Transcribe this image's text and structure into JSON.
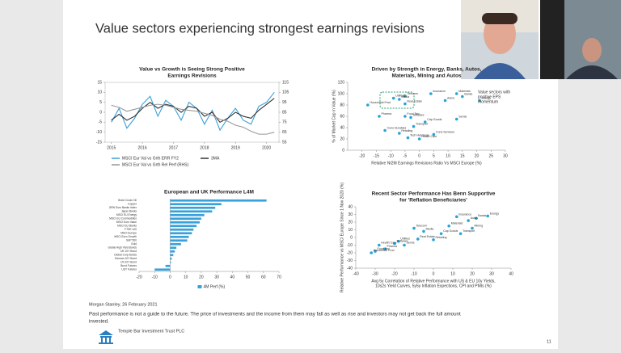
{
  "slide": {
    "title": "Value sectors experiencing strongest earnings revisions",
    "source": "Morgan Stanley, 26 February 2021",
    "disclaimer": [
      "Past performance is not a guide to the future. The price of investments and the income from them may fall as well as rise and investors may not get back the full amount",
      "invested."
    ],
    "company": "Temple Bar Investment Trust PLC",
    "page_number": "11"
  },
  "chart_data": [
    {
      "type": "line",
      "title": [
        "Value vs Growth is Seeing Strong Positive",
        "Earnings Revisions"
      ],
      "x": [
        2015,
        2015.25,
        2015.5,
        2015.75,
        2016,
        2016.25,
        2016.5,
        2016.75,
        2017,
        2017.25,
        2017.5,
        2017.75,
        2018,
        2018.25,
        2018.5,
        2018.75,
        2019,
        2019.25,
        2019.5,
        2019.75,
        2020,
        2020.25
      ],
      "xlim": [
        2014.8,
        2020.4
      ],
      "xticks": [
        2015,
        2016,
        2017,
        2018,
        2019,
        2020
      ],
      "ylim": [
        -15,
        15
      ],
      "yticks": [
        -15,
        -10,
        -5,
        0,
        5,
        10,
        15
      ],
      "y2lim": [
        55,
        115
      ],
      "y2ticks": [
        55,
        65,
        75,
        85,
        95,
        105,
        115
      ],
      "series": [
        {
          "name": "MSCI Eur Val vs Grth ERR FY2",
          "color": "#3aa0d8",
          "values": [
            -5,
            2,
            -8,
            -3,
            4,
            8,
            -2,
            6,
            3,
            -4,
            5,
            2,
            -6,
            1,
            -9,
            -3,
            2,
            -4,
            -6,
            3,
            5,
            10
          ]
        },
        {
          "name": "3MA",
          "color": "#333333",
          "values": [
            -4,
            -1,
            -4,
            -2,
            2,
            5,
            2,
            4,
            3,
            0,
            3,
            2,
            -2,
            0,
            -5,
            -3,
            0,
            -2,
            -3,
            1,
            4,
            7
          ]
        },
        {
          "name": "MSCI Eur Val vs Grth Rel Perf (RHS)",
          "color": "#999999",
          "axis": "y2",
          "values": [
            92,
            90,
            86,
            88,
            90,
            92,
            93,
            92,
            90,
            88,
            87,
            86,
            84,
            82,
            78,
            76,
            72,
            70,
            66,
            63,
            63,
            65
          ]
        }
      ]
    },
    {
      "type": "scatter",
      "title": [
        "Driven by Strength in Energy, Banks, Autos,",
        "Materials, Mining and Autos"
      ],
      "xlabel": [
        "Relative NI2M Earnings Revisions Ratio Vs MSCI Europe (%)"
      ],
      "ylabel": "% of Market Cap in Value (%)",
      "annotation": [
        "Value sectors with",
        "positive EPS",
        "momentum"
      ],
      "xlim": [
        -25,
        30
      ],
      "xticks": [
        -20,
        -15,
        -10,
        -5,
        0,
        5,
        10,
        15,
        20,
        25,
        30
      ],
      "ylim": [
        0,
        120
      ],
      "yticks": [
        0,
        20,
        40,
        60,
        80,
        100,
        120
      ],
      "color": "#29a3d6",
      "point_labels": [
        "Energy",
        "Banks",
        "Autos",
        "Materials",
        "Insurance",
        "Telecom",
        "Utilities",
        "Media",
        "Real Estate",
        "Household Prod",
        "Pharma",
        "Food Bev",
        "Software",
        "Cap Goods",
        "Transport",
        "Cons Durables",
        "Retailing",
        "Semis",
        "Cons Services",
        "Tech Hardware",
        "Health Care"
      ],
      "x": [
        21,
        15,
        9,
        13,
        4,
        -5,
        -9,
        -7,
        -5,
        -18,
        -14,
        -5,
        -3,
        2,
        -2,
        -12,
        -7,
        13,
        5,
        -4,
        0
      ],
      "values": [
        88,
        95,
        88,
        100,
        100,
        96,
        92,
        90,
        82,
        80,
        60,
        60,
        58,
        50,
        42,
        35,
        30,
        55,
        28,
        22,
        20
      ]
    },
    {
      "type": "bar",
      "orientation": "horizontal",
      "title": [
        "European and UK Performance L4M"
      ],
      "categories": [
        "Brent Crude Oil",
        "Copper",
        "GRN Euro Banks Index",
        "Japan Banks",
        "MSCI EU Energy",
        "MSCI EU Commodities",
        "MSCI Euro Value",
        "MSCI EU Banks",
        "FTSE 100",
        "MSCI Europe",
        "MSCI Euro Growth",
        "S&P 500",
        "Gold",
        "Global High Yield Bonds",
        "UK 10Y Bond",
        "Global Corp Bonds",
        "German 10Y Bond",
        "US 10Y Bond",
        "Bund Futures",
        "UST Futures"
      ],
      "xlim": [
        -20,
        70
      ],
      "xticks": [
        -20,
        -10,
        0,
        10,
        20,
        30,
        40,
        50,
        60,
        70
      ],
      "series": [
        {
          "name": "4M Perf (%)",
          "color": "#3aa0d8",
          "values": [
            62,
            33,
            29,
            27,
            22,
            20,
            19,
            17,
            15,
            14,
            12,
            11,
            7,
            4,
            3,
            2,
            1,
            0.5,
            -3,
            -10
          ]
        }
      ]
    },
    {
      "type": "scatter",
      "title": [
        "Recent Sector Performance Has Benn Supportive",
        "for 'Reflation Beneficiaries'"
      ],
      "xlabel": [
        "Avg 5y Correlation of Relative Performance with US & EU 10y Yields,",
        "10s2s Yield Curves, 5y5y Inflation Expections, CPI and PMIs (%)"
      ],
      "ylabel": "Relative Performance vs MSCI Europe Since 1 Nov 2020 (%)",
      "xlim": [
        -40,
        40
      ],
      "xticks": [
        -40,
        -30,
        -20,
        -10,
        0,
        10,
        20,
        30,
        40
      ],
      "ylim": [
        -40,
        40
      ],
      "yticks": [
        -40,
        -30,
        -20,
        -10,
        0,
        10,
        20,
        30,
        40
      ],
      "color": "#29a3d6",
      "point_labels": [
        "Energy",
        "Banks",
        "Insurance",
        "Autos",
        "Mining",
        "Materials",
        "Cap Goods",
        "Media",
        "Telecom",
        "Utilities",
        "Real Estate",
        "Pharma",
        "Food Bev",
        "Household Prod",
        "Software",
        "Semis",
        "Transport",
        "Retailing",
        "Health Care"
      ],
      "x": [
        28,
        22,
        12,
        18,
        20,
        8,
        4,
        -5,
        -10,
        -18,
        -8,
        -25,
        -30,
        -32,
        -20,
        -15,
        14,
        0,
        -28
      ],
      "values": [
        28,
        25,
        27,
        22,
        12,
        15,
        5,
        8,
        12,
        -5,
        -2,
        -15,
        -18,
        -20,
        -8,
        -10,
        5,
        -3,
        -10
      ]
    }
  ]
}
